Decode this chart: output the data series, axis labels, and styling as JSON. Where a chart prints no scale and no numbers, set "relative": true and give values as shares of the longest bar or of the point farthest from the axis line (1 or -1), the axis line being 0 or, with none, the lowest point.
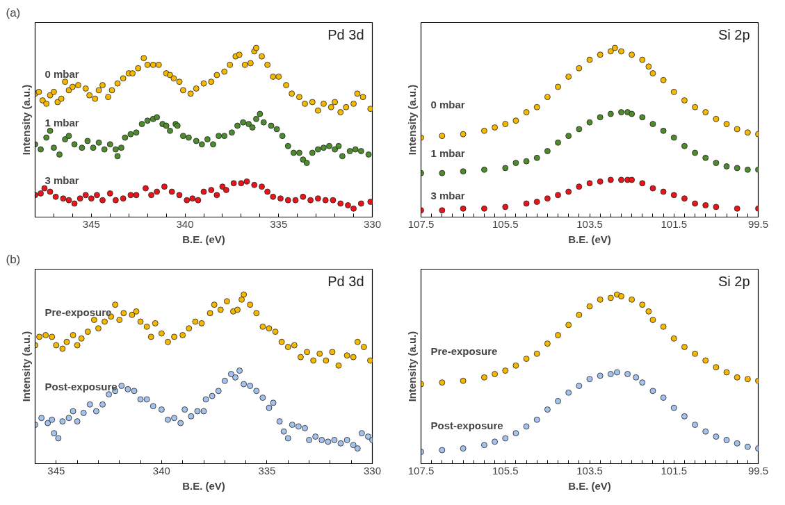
{
  "chart_data": [
    {
      "type": "scatter",
      "title": "Pd 3d",
      "annotations": [
        "(a)"
      ],
      "xlabel": "B.E. (eV)",
      "ylabel": "Intensity (a.u.)",
      "relative": true,
      "marker": "circle",
      "tick_labels": "x",
      "grid": false,
      "xlim": [
        348,
        330
      ],
      "xticks": [
        {
          "value": 347,
          "label": null
        },
        {
          "value": 346,
          "label": null
        },
        345,
        {
          "value": 344,
          "label": null
        },
        {
          "value": 343,
          "label": null
        },
        {
          "value": 342,
          "label": null
        },
        {
          "value": 341,
          "label": null
        },
        340,
        {
          "value": 339,
          "label": null
        },
        {
          "value": 338,
          "label": null
        },
        {
          "value": 337,
          "label": null
        },
        {
          "value": 336,
          "label": null
        },
        335,
        {
          "value": 334,
          "label": null
        },
        {
          "value": 333,
          "label": null
        },
        {
          "value": 332,
          "label": null
        },
        {
          "value": 331,
          "label": null
        },
        330
      ],
      "series": [
        {
          "name": "0 mbar",
          "color": "#f5b800",
          "x": [
            348.0,
            347.8,
            347.6,
            347.4,
            347.2,
            347.0,
            346.8,
            346.6,
            346.4,
            346.2,
            346.0,
            345.7,
            345.3,
            345.1,
            344.8,
            344.6,
            344.4,
            344.1,
            343.9,
            343.6,
            343.3,
            343.0,
            342.8,
            342.5,
            342.2,
            342.0,
            341.7,
            341.4,
            341.0,
            340.8,
            340.6,
            340.3,
            340.1,
            339.7,
            339.4,
            339.0,
            338.6,
            338.3,
            337.9,
            337.6,
            337.3,
            337.1,
            336.8,
            336.5,
            336.3,
            336.2,
            335.9,
            335.6,
            335.3,
            335.0,
            334.6,
            334.3,
            333.9,
            333.6,
            333.2,
            332.9,
            332.6,
            332.2,
            332.0,
            331.7,
            331.4,
            331.0,
            330.8,
            330.5,
            330.1
          ],
          "values": [
            0.73,
            0.74,
            0.69,
            0.67,
            0.72,
            0.74,
            0.68,
            0.7,
            0.8,
            0.75,
            0.77,
            0.78,
            0.76,
            0.72,
            0.7,
            0.75,
            0.78,
            0.71,
            0.75,
            0.79,
            0.82,
            0.85,
            0.85,
            0.88,
            0.94,
            0.9,
            0.9,
            0.9,
            0.85,
            0.84,
            0.82,
            0.8,
            0.75,
            0.73,
            0.76,
            0.79,
            0.8,
            0.84,
            0.86,
            0.9,
            0.95,
            0.96,
            0.9,
            0.91,
            0.98,
            1.0,
            0.95,
            0.9,
            0.83,
            0.83,
            0.78,
            0.73,
            0.71,
            0.67,
            0.68,
            0.63,
            0.67,
            0.65,
            0.68,
            0.62,
            0.65,
            0.67,
            0.73,
            0.71,
            0.64
          ]
        },
        {
          "name": "1 mbar",
          "color": "#4e8a2e",
          "x": [
            348.0,
            347.7,
            347.4,
            347.2,
            347.0,
            346.7,
            346.4,
            346.2,
            345.9,
            345.5,
            345.2,
            344.9,
            344.6,
            344.3,
            344.0,
            343.7,
            343.6,
            343.4,
            343.2,
            342.9,
            342.6,
            342.3,
            342.0,
            341.7,
            341.5,
            341.2,
            341.0,
            340.8,
            340.5,
            340.4,
            340.1,
            339.8,
            339.4,
            339.1,
            338.8,
            338.5,
            338.2,
            337.9,
            337.5,
            337.2,
            336.9,
            336.6,
            336.4,
            336.2,
            336.0,
            335.8,
            335.4,
            335.1,
            334.8,
            334.5,
            334.2,
            333.9,
            333.7,
            333.5,
            333.2,
            332.9,
            332.6,
            332.3,
            332.0,
            331.8,
            331.6,
            331.2,
            330.9,
            330.6,
            330.2
          ],
          "values": [
            0.43,
            0.4,
            0.47,
            0.51,
            0.41,
            0.37,
            0.46,
            0.48,
            0.43,
            0.41,
            0.45,
            0.41,
            0.44,
            0.4,
            0.43,
            0.4,
            0.36,
            0.41,
            0.47,
            0.49,
            0.5,
            0.55,
            0.57,
            0.58,
            0.59,
            0.55,
            0.54,
            0.51,
            0.55,
            0.54,
            0.48,
            0.47,
            0.45,
            0.43,
            0.46,
            0.43,
            0.48,
            0.48,
            0.5,
            0.54,
            0.56,
            0.55,
            0.53,
            0.58,
            0.61,
            0.56,
            0.54,
            0.52,
            0.48,
            0.42,
            0.38,
            0.38,
            0.34,
            0.32,
            0.38,
            0.4,
            0.41,
            0.42,
            0.4,
            0.42,
            0.36,
            0.39,
            0.4,
            0.39,
            0.37
          ]
        },
        {
          "name": "3 mbar",
          "color": "#e8141a",
          "x": [
            348.0,
            347.7,
            347.5,
            347.2,
            346.9,
            346.5,
            346.2,
            345.9,
            345.6,
            345.3,
            345.0,
            344.7,
            344.4,
            344.0,
            343.7,
            343.3,
            342.9,
            342.6,
            342.1,
            341.8,
            341.5,
            341.1,
            340.7,
            340.3,
            339.9,
            339.6,
            339.3,
            339.0,
            338.6,
            338.3,
            338.0,
            337.8,
            337.4,
            337.0,
            336.7,
            336.3,
            335.9,
            335.6,
            335.3,
            334.9,
            334.5,
            334.1,
            333.7,
            333.3,
            332.9,
            332.5,
            332.1,
            331.7,
            331.3,
            331.0,
            330.6,
            330.1
          ],
          "values": [
            0.13,
            0.14,
            0.17,
            0.15,
            0.12,
            0.11,
            0.1,
            0.08,
            0.11,
            0.13,
            0.11,
            0.13,
            0.1,
            0.14,
            0.1,
            0.11,
            0.13,
            0.13,
            0.17,
            0.13,
            0.15,
            0.18,
            0.15,
            0.13,
            0.1,
            0.11,
            0.1,
            0.15,
            0.16,
            0.13,
            0.18,
            0.16,
            0.2,
            0.2,
            0.21,
            0.19,
            0.18,
            0.15,
            0.12,
            0.11,
            0.1,
            0.1,
            0.12,
            0.1,
            0.11,
            0.1,
            0.1,
            0.08,
            0.07,
            0.05,
            0.08,
            0.09
          ]
        }
      ]
    },
    {
      "type": "scatter",
      "title": "Si 2p",
      "xlabel": "B.E. (eV)",
      "ylabel": "Intensity (a.u.)",
      "relative": true,
      "marker": "circle",
      "tick_labels": "x",
      "grid": false,
      "xlim": [
        107.5,
        99.5
      ],
      "xticks": [
        107.5,
        {
          "value": 107.25,
          "label": null
        },
        {
          "value": 107.0,
          "label": null
        },
        {
          "value": 106.75,
          "label": null
        },
        {
          "value": 106.5,
          "label": null
        },
        {
          "value": 106.25,
          "label": null
        },
        {
          "value": 106.0,
          "label": null
        },
        {
          "value": 105.75,
          "label": null
        },
        105.5,
        {
          "value": 105.25,
          "label": null
        },
        {
          "value": 105.0,
          "label": null
        },
        {
          "value": 104.75,
          "label": null
        },
        {
          "value": 104.5,
          "label": null
        },
        {
          "value": 104.25,
          "label": null
        },
        {
          "value": 104.0,
          "label": null
        },
        {
          "value": 103.75,
          "label": null
        },
        103.5,
        {
          "value": 103.25,
          "label": null
        },
        {
          "value": 103.0,
          "label": null
        },
        {
          "value": 102.75,
          "label": null
        },
        {
          "value": 102.5,
          "label": null
        },
        {
          "value": 102.25,
          "label": null
        },
        {
          "value": 102.0,
          "label": null
        },
        {
          "value": 101.75,
          "label": null
        },
        101.5,
        {
          "value": 101.25,
          "label": null
        },
        {
          "value": 101.0,
          "label": null
        },
        {
          "value": 100.75,
          "label": null
        },
        {
          "value": 100.5,
          "label": null
        },
        {
          "value": 100.25,
          "label": null
        },
        {
          "value": 100.0,
          "label": null
        },
        {
          "value": 99.75,
          "label": null
        },
        99.5
      ],
      "series": [
        {
          "name": "0 mbar",
          "color": "#f5b800",
          "x": [
            107.5,
            107.0,
            106.5,
            106.0,
            105.75,
            105.5,
            105.25,
            105.0,
            104.75,
            104.5,
            104.25,
            104.0,
            103.75,
            103.5,
            103.25,
            103.0,
            102.9,
            102.75,
            102.5,
            102.25,
            102.1,
            102.0,
            101.75,
            101.5,
            101.25,
            101.0,
            100.75,
            100.5,
            100.25,
            100.0,
            99.75,
            99.5
          ],
          "values": [
            0.47,
            0.48,
            0.49,
            0.51,
            0.53,
            0.55,
            0.57,
            0.62,
            0.65,
            0.71,
            0.77,
            0.83,
            0.88,
            0.93,
            0.96,
            0.98,
            1.0,
            0.98,
            0.96,
            0.93,
            0.89,
            0.85,
            0.81,
            0.74,
            0.69,
            0.65,
            0.62,
            0.58,
            0.55,
            0.52,
            0.5,
            0.49
          ]
        },
        {
          "name": "1 mbar",
          "color": "#4e8a2e",
          "x": [
            107.5,
            107.0,
            106.5,
            106.0,
            105.5,
            105.25,
            105.0,
            104.75,
            104.5,
            104.25,
            104.0,
            103.75,
            103.5,
            103.25,
            103.0,
            102.75,
            102.6,
            102.5,
            102.25,
            102.0,
            101.75,
            101.5,
            101.25,
            101.0,
            100.75,
            100.5,
            100.25,
            100.0,
            99.75,
            99.5
          ],
          "values": [
            0.26,
            0.26,
            0.27,
            0.28,
            0.29,
            0.32,
            0.33,
            0.35,
            0.39,
            0.44,
            0.48,
            0.52,
            0.56,
            0.59,
            0.61,
            0.62,
            0.62,
            0.61,
            0.59,
            0.55,
            0.51,
            0.47,
            0.42,
            0.38,
            0.35,
            0.32,
            0.3,
            0.29,
            0.28,
            0.28
          ]
        },
        {
          "name": "3 mbar",
          "color": "#e8141a",
          "x": [
            107.5,
            107.0,
            106.5,
            106.0,
            105.5,
            105.0,
            104.75,
            104.5,
            104.25,
            104.0,
            103.75,
            103.5,
            103.25,
            103.0,
            102.75,
            102.6,
            102.5,
            102.25,
            102.0,
            101.75,
            101.5,
            101.25,
            101.0,
            100.75,
            100.5,
            100.0,
            99.5
          ],
          "values": [
            0.04,
            0.04,
            0.05,
            0.05,
            0.06,
            0.08,
            0.09,
            0.11,
            0.13,
            0.15,
            0.18,
            0.2,
            0.21,
            0.22,
            0.22,
            0.22,
            0.22,
            0.2,
            0.17,
            0.15,
            0.13,
            0.11,
            0.08,
            0.07,
            0.06,
            0.05,
            0.05
          ]
        }
      ]
    },
    {
      "type": "scatter",
      "title": "Pd 3d",
      "annotations": [
        "(b)"
      ],
      "xlabel": "B.E. (eV)",
      "ylabel": "Intensity (a.u.)",
      "relative": true,
      "marker": "circle",
      "tick_labels": "x",
      "grid": false,
      "xlim": [
        346,
        330
      ],
      "xticks": [
        345,
        {
          "value": 344,
          "label": null
        },
        {
          "value": 343,
          "label": null
        },
        {
          "value": 342,
          "label": null
        },
        {
          "value": 341,
          "label": null
        },
        340,
        {
          "value": 339,
          "label": null
        },
        {
          "value": 338,
          "label": null
        },
        {
          "value": 337,
          "label": null
        },
        {
          "value": 336,
          "label": null
        },
        335,
        {
          "value": 334,
          "label": null
        },
        {
          "value": 333,
          "label": null
        },
        {
          "value": 332,
          "label": null
        },
        {
          "value": 331,
          "label": null
        },
        330
      ],
      "series": [
        {
          "name": "Pre-exposure",
          "color": "#f5b800",
          "x": [
            346.0,
            345.8,
            345.5,
            345.2,
            345.0,
            344.7,
            344.5,
            344.2,
            344.0,
            343.8,
            343.5,
            343.2,
            343.0,
            342.7,
            342.4,
            342.2,
            342.0,
            341.8,
            341.4,
            341.2,
            341.0,
            340.7,
            340.5,
            340.3,
            340.0,
            339.7,
            339.4,
            339.0,
            338.7,
            338.4,
            338.1,
            337.7,
            337.5,
            337.2,
            336.9,
            336.6,
            336.4,
            336.2,
            336.1,
            335.8,
            335.5,
            335.2,
            334.9,
            334.6,
            334.3,
            334.0,
            333.7,
            333.4,
            333.1,
            332.8,
            332.5,
            332.2,
            331.9,
            331.6,
            331.2,
            330.9,
            330.7,
            330.4,
            330.1
          ],
          "values": [
            0.7,
            0.75,
            0.76,
            0.75,
            0.7,
            0.68,
            0.72,
            0.76,
            0.7,
            0.74,
            0.78,
            0.85,
            0.8,
            0.84,
            0.87,
            0.94,
            0.85,
            0.89,
            0.88,
            0.9,
            0.84,
            0.81,
            0.75,
            0.83,
            0.77,
            0.72,
            0.75,
            0.76,
            0.8,
            0.84,
            0.83,
            0.89,
            0.94,
            0.91,
            0.96,
            0.9,
            0.91,
            0.97,
            1.0,
            0.94,
            0.89,
            0.81,
            0.8,
            0.78,
            0.72,
            0.69,
            0.7,
            0.63,
            0.66,
            0.61,
            0.65,
            0.61,
            0.66,
            0.58,
            0.64,
            0.63,
            0.72,
            0.69,
            0.61
          ]
        },
        {
          "name": "Post-exposure",
          "color": "#a4c2ec",
          "x": [
            346.0,
            345.7,
            345.4,
            345.2,
            345.1,
            344.9,
            344.7,
            344.4,
            344.2,
            344.0,
            343.7,
            343.4,
            343.1,
            342.8,
            342.5,
            342.2,
            341.9,
            341.6,
            341.3,
            341.0,
            340.7,
            340.4,
            340.0,
            339.7,
            339.4,
            339.1,
            338.9,
            338.6,
            338.3,
            338.0,
            337.9,
            337.6,
            337.3,
            337.0,
            336.7,
            336.5,
            336.3,
            336.1,
            335.8,
            335.5,
            335.2,
            334.9,
            334.7,
            334.4,
            334.2,
            334.0,
            333.8,
            333.5,
            333.2,
            333.0,
            332.7,
            332.4,
            332.1,
            331.8,
            331.5,
            331.2,
            330.9,
            330.7,
            330.5,
            330.2,
            330.0
          ],
          "values": [
            0.23,
            0.27,
            0.24,
            0.26,
            0.18,
            0.15,
            0.25,
            0.27,
            0.31,
            0.25,
            0.3,
            0.35,
            0.31,
            0.35,
            0.41,
            0.43,
            0.46,
            0.44,
            0.43,
            0.38,
            0.38,
            0.34,
            0.32,
            0.26,
            0.27,
            0.24,
            0.32,
            0.28,
            0.31,
            0.31,
            0.38,
            0.4,
            0.43,
            0.49,
            0.53,
            0.51,
            0.55,
            0.47,
            0.46,
            0.43,
            0.39,
            0.33,
            0.36,
            0.25,
            0.19,
            0.15,
            0.23,
            0.22,
            0.21,
            0.14,
            0.16,
            0.14,
            0.13,
            0.14,
            0.12,
            0.14,
            0.11,
            0.09,
            0.18,
            0.16,
            0.14
          ]
        }
      ]
    },
    {
      "type": "scatter",
      "title": "Si 2p",
      "xlabel": "B.E. (eV)",
      "ylabel": "Intensity (a.u.)",
      "relative": true,
      "marker": "circle",
      "tick_labels": "x",
      "grid": false,
      "xlim": [
        107.5,
        99.5
      ],
      "xticks": [
        107.5,
        {
          "value": 107.25,
          "label": null
        },
        {
          "value": 107.0,
          "label": null
        },
        {
          "value": 106.75,
          "label": null
        },
        {
          "value": 106.5,
          "label": null
        },
        {
          "value": 106.25,
          "label": null
        },
        {
          "value": 106.0,
          "label": null
        },
        {
          "value": 105.75,
          "label": null
        },
        105.5,
        {
          "value": 105.25,
          "label": null
        },
        {
          "value": 105.0,
          "label": null
        },
        {
          "value": 104.75,
          "label": null
        },
        {
          "value": 104.5,
          "label": null
        },
        {
          "value": 104.25,
          "label": null
        },
        {
          "value": 104.0,
          "label": null
        },
        {
          "value": 103.75,
          "label": null
        },
        103.5,
        {
          "value": 103.25,
          "label": null
        },
        {
          "value": 103.0,
          "label": null
        },
        {
          "value": 102.75,
          "label": null
        },
        {
          "value": 102.5,
          "label": null
        },
        {
          "value": 102.25,
          "label": null
        },
        {
          "value": 102.0,
          "label": null
        },
        {
          "value": 101.75,
          "label": null
        },
        101.5,
        {
          "value": 101.25,
          "label": null
        },
        {
          "value": 101.0,
          "label": null
        },
        {
          "value": 100.75,
          "label": null
        },
        {
          "value": 100.5,
          "label": null
        },
        {
          "value": 100.25,
          "label": null
        },
        {
          "value": 100.0,
          "label": null
        },
        {
          "value": 99.75,
          "label": null
        },
        99.5
      ],
      "series": [
        {
          "name": "Pre-exposure",
          "color": "#f5b800",
          "x": [
            107.5,
            107.0,
            106.5,
            106.0,
            105.75,
            105.5,
            105.25,
            105.0,
            104.75,
            104.5,
            104.25,
            104.0,
            103.75,
            103.5,
            103.25,
            103.0,
            102.85,
            102.75,
            102.5,
            102.25,
            102.1,
            102.0,
            101.75,
            101.5,
            101.25,
            101.0,
            100.75,
            100.5,
            100.25,
            100.0,
            99.75,
            99.5
          ],
          "values": [
            0.47,
            0.48,
            0.49,
            0.51,
            0.53,
            0.55,
            0.58,
            0.62,
            0.65,
            0.71,
            0.76,
            0.82,
            0.88,
            0.93,
            0.97,
            0.98,
            1.0,
            0.99,
            0.97,
            0.94,
            0.9,
            0.85,
            0.81,
            0.74,
            0.69,
            0.65,
            0.61,
            0.57,
            0.54,
            0.51,
            0.5,
            0.49
          ]
        },
        {
          "name": "Post-exposure",
          "color": "#a4c2ec",
          "x": [
            107.5,
            107.0,
            106.5,
            106.0,
            105.75,
            105.5,
            105.25,
            105.0,
            104.75,
            104.5,
            104.25,
            104.0,
            103.75,
            103.5,
            103.25,
            103.0,
            102.85,
            102.6,
            102.4,
            102.25,
            102.0,
            101.75,
            101.5,
            101.25,
            101.0,
            100.75,
            100.5,
            100.25,
            100.0,
            99.75,
            99.5
          ],
          "values": [
            0.07,
            0.08,
            0.09,
            0.11,
            0.13,
            0.15,
            0.18,
            0.22,
            0.26,
            0.32,
            0.37,
            0.42,
            0.46,
            0.5,
            0.52,
            0.53,
            0.54,
            0.53,
            0.51,
            0.48,
            0.43,
            0.39,
            0.33,
            0.28,
            0.23,
            0.19,
            0.16,
            0.14,
            0.12,
            0.1,
            0.09
          ]
        }
      ]
    }
  ]
}
